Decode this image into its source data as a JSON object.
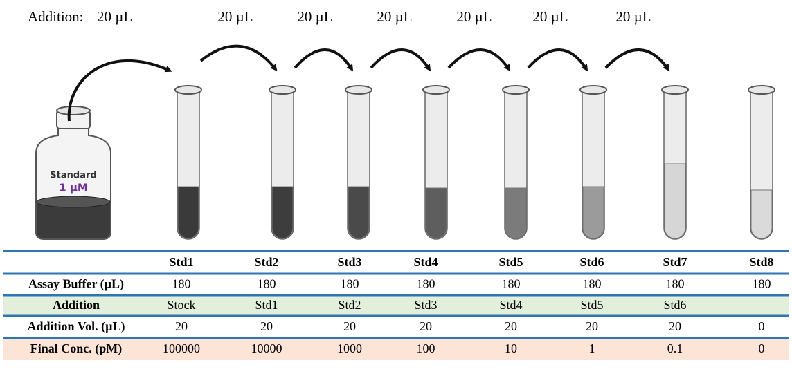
{
  "header": {
    "label": "Addition:",
    "volumes": [
      "20 µL",
      "20 µL",
      "20 µL",
      "20 µL",
      "20 µL",
      "20 µL",
      "20 µL"
    ]
  },
  "bottle": {
    "name": "Standard",
    "concentration": "1 µM"
  },
  "table": {
    "columns": [
      "Std1",
      "Std2",
      "Std3",
      "Std4",
      "Std5",
      "Std6",
      "Std7",
      "Std8"
    ],
    "rows": [
      {
        "label": "Assay Buffer (µL)",
        "cells": [
          "180",
          "180",
          "180",
          "180",
          "180",
          "180",
          "180",
          "180"
        ]
      },
      {
        "label": "Addition",
        "cells": [
          "Stock",
          "Std1",
          "Std2",
          "Std3",
          "Std4",
          "Std5",
          "Std6"
        ]
      },
      {
        "label": "Addition Vol. (µL)",
        "cells": [
          "20",
          "20",
          "20",
          "20",
          "20",
          "20",
          "20",
          "0"
        ]
      },
      {
        "label": "Final Conc. (pM)",
        "cells": [
          "100000",
          "10000",
          "1000",
          "100",
          "10",
          "1",
          "0.1",
          "0"
        ]
      }
    ]
  }
}
